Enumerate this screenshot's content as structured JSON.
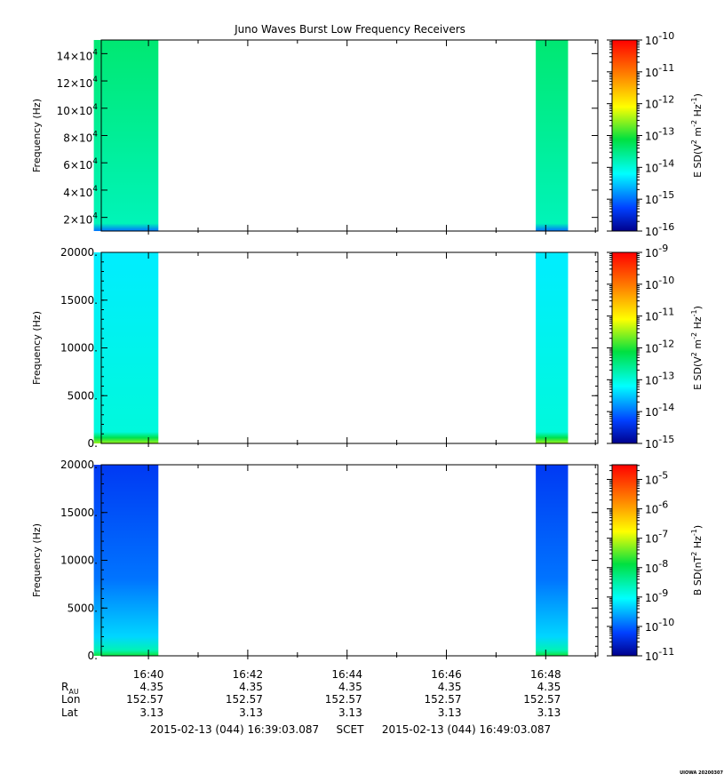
{
  "chart_data": {
    "title": "Juno Waves Burst Low Frequency Receivers",
    "type": "heatmap",
    "x_axis": {
      "label": "SCET",
      "range_minutes": [
        "16:39:03",
        "16:49:03"
      ],
      "tick_labels": [
        "16:40",
        "16:42",
        "16:44",
        "16:46",
        "16:48"
      ],
      "tick_minutes": [
        "16:40",
        "16:42",
        "16:44",
        "16:46",
        "16:48"
      ]
    },
    "bursts": [
      {
        "start": "16:38:54",
        "end": "16:40:12"
      },
      {
        "start": "16:47:48",
        "end": "16:48:27"
      }
    ],
    "panels": [
      {
        "ylabel": "Frequency (Hz)",
        "ylim": [
          10000,
          150000
        ],
        "y_ticks": [
          20000,
          40000,
          60000,
          80000,
          100000,
          120000,
          140000
        ],
        "y_tick_labels": [
          {
            "mantissa": "2×10",
            "exp": "4"
          },
          {
            "mantissa": "4×10",
            "exp": "4"
          },
          {
            "mantissa": "6×10",
            "exp": "4"
          },
          {
            "mantissa": "8×10",
            "exp": "4"
          },
          {
            "mantissa": "10×10",
            "exp": "4"
          },
          {
            "mantissa": "12×10",
            "exp": "4"
          },
          {
            "mantissa": "14×10",
            "exp": "4"
          }
        ],
        "colorbar": {
          "label_parts": [
            "E SD(V",
            "2",
            " m",
            "-2",
            " Hz",
            "-1",
            ")"
          ],
          "log_min": -16,
          "log_max": -10,
          "ticks": [
            -16,
            -15,
            -14,
            -13,
            -12,
            -11,
            -10
          ]
        },
        "intensity_profile": [
          {
            "f_frac": 0.0,
            "log": -15.0
          },
          {
            "f_frac": 0.04,
            "log": -13.8
          },
          {
            "f_frac": 1.0,
            "log": -13.4
          }
        ]
      },
      {
        "ylabel": "Frequency (Hz)",
        "ylim": [
          0,
          20000
        ],
        "y_ticks": [
          0,
          5000,
          10000,
          15000,
          20000
        ],
        "y_tick_labels": [
          "0.",
          "5000.",
          "10000.",
          "15000.",
          "20000."
        ],
        "colorbar": {
          "label_parts": [
            "E SD(V",
            "2",
            " m",
            "-2",
            " Hz",
            "-1",
            ")"
          ],
          "log_min": -15,
          "log_max": -9,
          "ticks": [
            -15,
            -14,
            -13,
            -12,
            -11,
            -10,
            -9
          ]
        },
        "intensity_profile": [
          {
            "f_frac": 0.0,
            "log": -11.5
          },
          {
            "f_frac": 0.03,
            "log": -12.2
          },
          {
            "f_frac": 0.06,
            "log": -13.0
          },
          {
            "f_frac": 1.0,
            "log": -13.3
          }
        ]
      },
      {
        "ylabel": "Frequency (Hz)",
        "ylim": [
          0,
          20000
        ],
        "y_ticks": [
          0,
          5000,
          10000,
          15000,
          20000
        ],
        "y_tick_labels": [
          "0.",
          "5000.",
          "10000.",
          "15000.",
          "20000."
        ],
        "colorbar": {
          "label_parts": [
            "B SD(nT",
            "2",
            " Hz",
            "-1",
            ")"
          ],
          "log_min": -11,
          "log_max": -4.5,
          "ticks": [
            -11,
            -10,
            -9,
            -8,
            -7,
            -6,
            -5
          ]
        },
        "intensity_profile": [
          {
            "f_frac": 0.0,
            "log": -7.8
          },
          {
            "f_frac": 0.03,
            "log": -8.6
          },
          {
            "f_frac": 0.1,
            "log": -9.3
          },
          {
            "f_frac": 0.4,
            "log": -9.9
          },
          {
            "f_frac": 1.0,
            "log": -10.3
          }
        ]
      }
    ],
    "ephemeris": {
      "rows": [
        {
          "label": "R",
          "sub": "AU",
          "values": [
            "4.35",
            "4.35",
            "4.35",
            "4.35",
            "4.35"
          ]
        },
        {
          "label": "Lon",
          "values": [
            "152.57",
            "152.57",
            "152.57",
            "152.57",
            "152.57"
          ]
        },
        {
          "label": "Lat",
          "values": [
            "3.13",
            "3.13",
            "3.13",
            "3.13",
            "3.13"
          ]
        }
      ]
    },
    "time_range": {
      "start": "2015-02-13 (044) 16:39:03.087",
      "label": "SCET",
      "end": "2015-02-13 (044) 16:49:03.087"
    },
    "stamp": "UIOWA 20200307"
  }
}
